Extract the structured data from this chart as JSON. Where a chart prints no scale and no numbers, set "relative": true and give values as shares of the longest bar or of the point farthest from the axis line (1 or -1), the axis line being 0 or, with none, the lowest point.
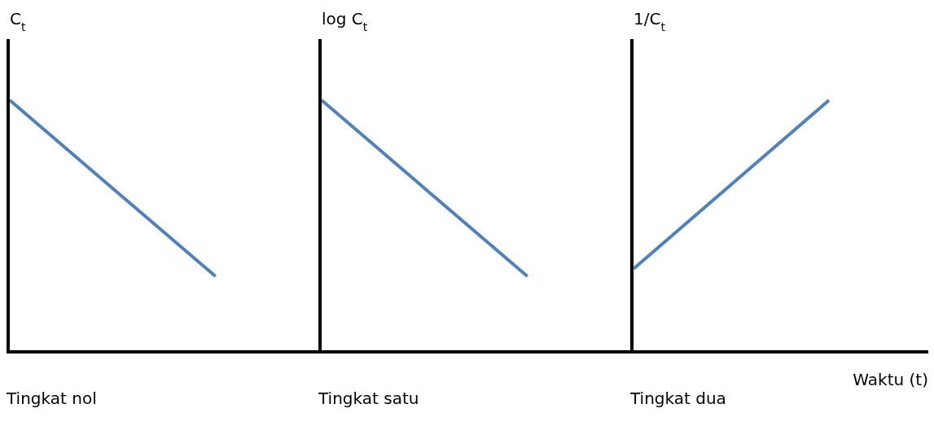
{
  "chart_data": [
    {
      "type": "line",
      "title": "Tingkat nol",
      "ylabel": "C$_{t}$",
      "relative": true,
      "categories": [
        null,
        null,
        null,
        null
      ],
      "series": [
        {
          "color": "#4f81bd",
          "values": [
            1,
            0.65,
            0.3,
            null
          ]
        }
      ]
    },
    {
      "type": "line",
      "title": "Tingkat satu",
      "ylabel": "log C$_{t}$",
      "relative": true,
      "categories": [
        null,
        null,
        null,
        null
      ],
      "series": [
        {
          "color": "#4f81bd",
          "values": [
            1,
            0.65,
            0.3,
            null
          ]
        }
      ]
    },
    {
      "type": "line",
      "title": "Tingkat dua",
      "ylabel": "1/C$_{t}$",
      "xlabel": "Waktu (t)",
      "relative": true,
      "categories": [
        null,
        null,
        null,
        null
      ],
      "series": [
        {
          "color": "#4f81bd",
          "values": [
            0.33,
            0.665,
            1,
            null
          ]
        }
      ]
    }
  ]
}
